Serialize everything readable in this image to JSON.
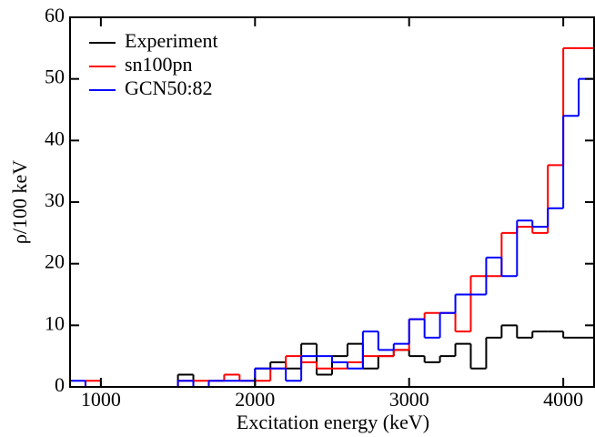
{
  "chart_data": {
    "type": "histogram",
    "x_label": "Excitation energy (keV)",
    "y_label": "ρ/100 keV",
    "bins": [
      800,
      900,
      1000,
      1100,
      1200,
      1300,
      1400,
      1500,
      1600,
      1700,
      1800,
      1900,
      2000,
      2100,
      2200,
      2300,
      2400,
      2500,
      2600,
      2700,
      2800,
      2900,
      3000,
      3100,
      3200,
      3300,
      3400,
      3500,
      3600,
      3700,
      3800,
      3900,
      4000,
      4100,
      4200
    ],
    "series": [
      {
        "name": "Experiment",
        "color": "#000000",
        "values": [
          0,
          0,
          0,
          0,
          0,
          0,
          0,
          2,
          0,
          0,
          0,
          0,
          3,
          4,
          3,
          7,
          2,
          5,
          7,
          3,
          5,
          6,
          5,
          4,
          5,
          7,
          3,
          8,
          10,
          8,
          9,
          9,
          8,
          8
        ]
      },
      {
        "name": "sn100pn",
        "color": "#ff0000",
        "values": [
          0,
          1,
          0,
          0,
          0,
          0,
          0,
          1,
          1,
          1,
          2,
          1,
          1,
          3,
          5,
          4,
          3,
          3,
          4,
          5,
          5,
          6,
          11,
          12,
          12,
          9,
          18,
          18,
          25,
          26,
          25,
          36,
          55,
          55
        ]
      },
      {
        "name": "GCN50:82",
        "color": "#0000ff",
        "values": [
          1,
          0,
          0,
          0,
          0,
          0,
          0,
          1,
          0,
          1,
          1,
          1,
          3,
          3,
          1,
          5,
          5,
          4,
          3,
          9,
          6,
          7,
          11,
          8,
          12,
          15,
          15,
          21,
          18,
          27,
          26,
          29,
          44,
          50
        ]
      }
    ],
    "xlim": [
      800,
      4200
    ],
    "xticks": [
      1000,
      2000,
      3000,
      4000
    ],
    "ylim": [
      0,
      60
    ],
    "yticks": [
      0,
      10,
      20,
      30,
      40,
      50,
      60
    ],
    "legend": "upper-left"
  }
}
